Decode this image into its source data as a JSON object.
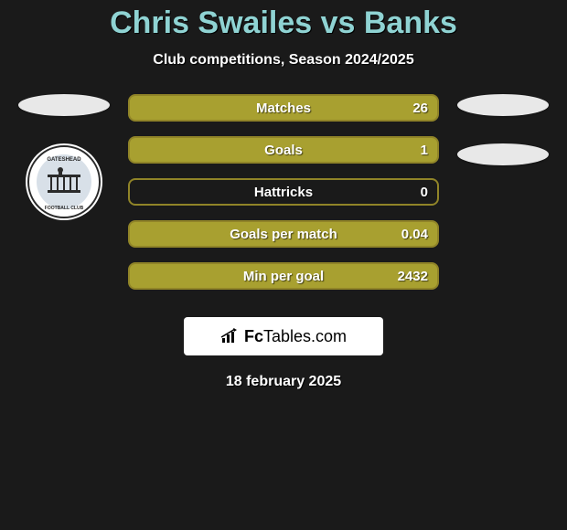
{
  "header": {
    "title": "Chris Swailes vs Banks",
    "subtitle": "Club competitions, Season 2024/2025",
    "title_color": "#8fd3d3"
  },
  "left_club": {
    "name": "Gateshead Football Club",
    "logo_outer": "#2a2a2a",
    "logo_inner": "#d8e0e8"
  },
  "stat_style": {
    "fill_color": "#a8a030",
    "border_color": "#908428",
    "empty_fill": "#1a1a1a"
  },
  "stats": [
    {
      "label": "Matches",
      "value": "26",
      "fill": 1.0
    },
    {
      "label": "Goals",
      "value": "1",
      "fill": 1.0
    },
    {
      "label": "Hattricks",
      "value": "0",
      "fill": 0.0
    },
    {
      "label": "Goals per match",
      "value": "0.04",
      "fill": 1.0
    },
    {
      "label": "Min per goal",
      "value": "2432",
      "fill": 1.0
    }
  ],
  "footer": {
    "brand_prefix": "Fc",
    "brand_suffix": "Tables.com",
    "date": "18 february 2025"
  }
}
